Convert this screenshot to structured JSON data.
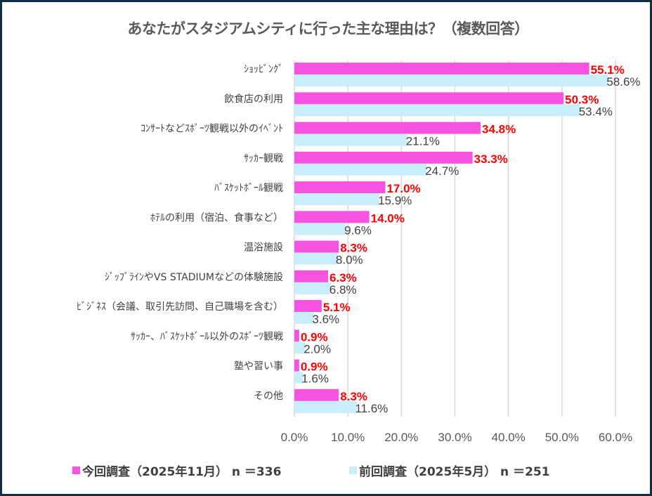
{
  "chart_data": {
    "type": "bar",
    "orientation": "horizontal",
    "title": "あなたがスタジアムシティに行った主な理由は？（複数回答）",
    "xlabel": "",
    "ylabel": "",
    "xlim": [
      0,
      60
    ],
    "x_ticks": [
      "0.0%",
      "10.0%",
      "20.0%",
      "30.0%",
      "40.0%",
      "50.0%",
      "60.0%"
    ],
    "grid": true,
    "legend_position": "bottom",
    "categories": [
      "ｼｮｯﾋﾟﾝｸﾞ",
      "飲食店の利用",
      "ｺﾝｻｰﾄなどｽﾎﾟｰﾂ観戦以外のｲﾍﾞﾝﾄ",
      "ｻｯｶｰ観戦",
      "ﾊﾞｽｹｯﾄﾎﾞｰﾙ観戦",
      "ﾎﾃﾙの利用（宿泊、食事など）",
      "温浴施設",
      "ｼﾞｯﾌﾟﾗｲﾝやVS STADIUMなどの体験施設",
      "ﾋﾞｼﾞﾈｽ（会議、取引先訪問、自己職場を含む）",
      "ｻｯｶｰ、ﾊﾞｽｹｯﾄﾎﾞｰﾙ以外のｽﾎﾟｰﾂ観戦",
      "塾や習い事",
      "その他"
    ],
    "series": [
      {
        "name": "今回調査（2025年11月） n ＝336",
        "color": "#f553e0",
        "label_color": "#ff0000",
        "values": [
          55.1,
          50.3,
          34.8,
          33.3,
          17.0,
          14.0,
          8.3,
          6.3,
          5.1,
          0.9,
          0.9,
          8.3
        ],
        "labels": [
          "55.1%",
          "50.3%",
          "34.8%",
          "33.3%",
          "17.0%",
          "14.0%",
          "8.3%",
          "6.3%",
          "5.1%",
          "0.9%",
          "0.9%",
          "8.3%"
        ]
      },
      {
        "name": "前回調査（2025年5月） n ＝251",
        "color": "#c8edfb",
        "label_color": "#404040",
        "values": [
          58.6,
          53.4,
          21.1,
          24.7,
          15.9,
          9.6,
          8.0,
          6.8,
          3.6,
          2.0,
          1.6,
          11.6
        ],
        "labels": [
          "58.6%",
          "53.4%",
          "21.1%",
          "24.7%",
          "15.9%",
          "9.6%",
          "8.0%",
          "6.8%",
          "3.6%",
          "2.0%",
          "1.6%",
          "11.6%"
        ]
      }
    ]
  },
  "legend": {
    "current": "今回調査（2025年11月） n ＝336",
    "previous": "前回調査（2025年5月） n ＝251"
  }
}
